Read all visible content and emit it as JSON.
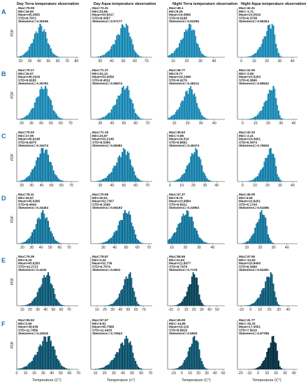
{
  "figure": {
    "column_titles": [
      "Day Terra temperature observation",
      "Day Aqua temperature observation",
      "Night Terra temperature observation",
      "Night Aqua temperature observation"
    ],
    "row_letters": [
      "A",
      "B",
      "C",
      "D",
      "E",
      "F"
    ],
    "ylabel": "PDF",
    "xlabels": [
      "Temperature (C°)",
      "Temperature (c°)",
      "Temperature (C°)",
      "Temperature (C°)"
    ]
  },
  "chart_data": [
    {
      "type": "bar",
      "row": "A",
      "col": 1,
      "title": "Day Terra temperature observation",
      "stats": [
        "Max=79.09",
        "Min=16.83",
        "Mean=45.3655",
        "STD=8.7972",
        "Skewness=-0.36196"
      ],
      "x_ticks": [
        "20",
        "30",
        "40",
        "50",
        "60",
        "70",
        "80"
      ],
      "xlim": [
        16,
        82
      ],
      "mean": 45.37,
      "std": 8.8,
      "skew": -0.36,
      "colors": [
        "#2e9ec6",
        "#1b7ea8"
      ]
    },
    {
      "type": "bar",
      "row": "A",
      "col": 2,
      "title": "Day Aqua temperature observation",
      "stats": [
        "Max=72.31",
        "Min=23.65",
        "Mean=53.5017",
        "STD=8.4357",
        "Skewness=-0.57177"
      ],
      "x_ticks": [
        "30",
        "40",
        "50",
        "60",
        "70"
      ],
      "xlim": [
        22,
        75
      ],
      "mean": 53.5,
      "std": 8.44,
      "skew": -0.57,
      "colors": [
        "#2e9ec6",
        "#1b7ea8"
      ]
    },
    {
      "type": "bar",
      "row": "A",
      "col": 3,
      "title": "Night Terra temperature observation",
      "stats": [
        "Max=49.1",
        "Min=8.25",
        "Mean=24.5866",
        "STD=6.9168",
        "Skewness=-0.52255"
      ],
      "x_ticks": [
        "10",
        "20",
        "30",
        "40"
      ],
      "xlim": [
        6,
        48
      ],
      "mean": 24.59,
      "std": 6.92,
      "skew": -0.52,
      "colors": [
        "#2e9ec6",
        "#1b7ea8"
      ]
    },
    {
      "type": "bar",
      "row": "A",
      "col": 4,
      "title": "Night Aqua temperature observation",
      "stats": [
        "Max=42.31",
        "Min=-1.71",
        "Mean=23.5519",
        "STD=6.3738",
        "Skewness=-0.85304"
      ],
      "x_ticks": [
        "0",
        "10",
        "20",
        "30",
        "40"
      ],
      "xlim": [
        -3,
        44
      ],
      "mean": 23.55,
      "std": 6.37,
      "skew": -0.85,
      "colors": [
        "#2e9ec6",
        "#1b7ea8"
      ]
    },
    {
      "type": "bar",
      "row": "B",
      "col": 1,
      "stats": [
        "Max=76.17",
        "Min=16.57",
        "Mean=46.2918",
        "STD=8.8185",
        "Skewness=-0.35782"
      ],
      "x_ticks": [
        "20",
        "30",
        "40",
        "50",
        "60",
        "70"
      ],
      "xlim": [
        15,
        78
      ],
      "mean": 46.29,
      "std": 8.82,
      "skew": -0.36,
      "colors": [
        "#2e9ec6",
        "#1b7ea8"
      ]
    },
    {
      "type": "bar",
      "row": "B",
      "col": 2,
      "stats": [
        "Max=71.37",
        "Min=24.13",
        "Mean=53.4559",
        "STD=8.4531",
        "Skewness=-0.56674"
      ],
      "x_ticks": [
        "30",
        "40",
        "50",
        "60",
        "70"
      ],
      "xlim": [
        22,
        74
      ],
      "mean": 53.46,
      "std": 8.45,
      "skew": -0.57,
      "colors": [
        "#2e9ec6",
        "#1b7ea8"
      ]
    },
    {
      "type": "bar",
      "row": "B",
      "col": 3,
      "stats": [
        "Max=46.77",
        "Min=6.77",
        "Mean=24.2449",
        "STD=6.9276",
        "Skewness=-0.48114"
      ],
      "x_ticks": [
        "10",
        "20",
        "30",
        "40"
      ],
      "xlim": [
        5,
        48
      ],
      "mean": 24.24,
      "std": 6.93,
      "skew": -0.48,
      "colors": [
        "#2e9ec6",
        "#1b7ea8"
      ]
    },
    {
      "type": "bar",
      "row": "B",
      "col": 4,
      "stats": [
        "Max=41.05",
        "Min=-2.69",
        "Mean=23.5293",
        "STD=6.3896",
        "Skewness=-0.89543"
      ],
      "x_ticks": [
        "0",
        "10",
        "20",
        "30",
        "40"
      ],
      "xlim": [
        -4,
        43
      ],
      "mean": 23.53,
      "std": 6.39,
      "skew": -0.9,
      "colors": [
        "#2e9ec6",
        "#1b7ea8"
      ]
    },
    {
      "type": "bar",
      "row": "C",
      "col": 1,
      "stats": [
        "Max=75.03",
        "Min=17.05",
        "Mean=45.9148",
        "STD=8.6975",
        "Skewness=-0.34274"
      ],
      "x_ticks": [
        "20",
        "30",
        "40",
        "50",
        "60",
        "70"
      ],
      "xlim": [
        15,
        77
      ],
      "mean": 45.91,
      "std": 8.7,
      "skew": -0.34,
      "colors": [
        "#2a95bd",
        "#17759e"
      ]
    },
    {
      "type": "bar",
      "row": "C",
      "col": 2,
      "stats": [
        "Max=71.15",
        "Min=23.67",
        "Mean=53.2149",
        "STD=8.5396",
        "Skewness=-0.56082"
      ],
      "x_ticks": [
        "30",
        "40",
        "50",
        "60",
        "70"
      ],
      "xlim": [
        22,
        74
      ],
      "mean": 53.21,
      "std": 8.54,
      "skew": -0.56,
      "colors": [
        "#2a95bd",
        "#17759e"
      ]
    },
    {
      "type": "bar",
      "row": "C",
      "col": 3,
      "stats": [
        "Max=45.63",
        "Min=-0.85",
        "Mean=24.314",
        "STD=6.8562",
        "Skewness=-0.45474"
      ],
      "x_ticks": [
        "0",
        "10",
        "20",
        "30",
        "40"
      ],
      "xlim": [
        -2,
        47
      ],
      "mean": 24.31,
      "std": 6.86,
      "skew": -0.45,
      "colors": [
        "#2a95bd",
        "#17759e"
      ]
    },
    {
      "type": "bar",
      "row": "C",
      "col": 4,
      "stats": [
        "Max=42.33",
        "Min=-2.21",
        "Mean=23.4601",
        "STD=6.3474",
        "Skewness=-0.76526"
      ],
      "x_ticks": [
        "0",
        "10",
        "20",
        "30",
        "40"
      ],
      "xlim": [
        -4,
        44
      ],
      "mean": 23.46,
      "std": 6.35,
      "skew": -0.77,
      "colors": [
        "#2a95bd",
        "#17759e"
      ]
    },
    {
      "type": "bar",
      "row": "D",
      "col": 1,
      "stats": [
        "Max=78.11",
        "Min=15.57",
        "Mean=45.5266",
        "STD=8.4644",
        "Skewness=-0.34404"
      ],
      "x_ticks": [
        "20",
        "30",
        "40",
        "50",
        "60",
        "70"
      ],
      "xlim": [
        14,
        80
      ],
      "mean": 45.53,
      "std": 8.46,
      "skew": -0.34,
      "colors": [
        "#2488ae",
        "#136a8f"
      ]
    },
    {
      "type": "bar",
      "row": "D",
      "col": 2,
      "stats": [
        "Max=70.69",
        "Min=20.01",
        "Mean=52.7307",
        "STD=8.1599",
        "Skewness=-0.56192"
      ],
      "x_ticks": [
        "30",
        "40",
        "50",
        "60",
        "70"
      ],
      "xlim": [
        19,
        73
      ],
      "mean": 52.73,
      "std": 8.16,
      "skew": -0.56,
      "colors": [
        "#2488ae",
        "#136a8f"
      ]
    },
    {
      "type": "bar",
      "row": "D",
      "col": 3,
      "stats": [
        "Max=47.37",
        "Min=8.75",
        "Mean=23.9884",
        "STD=6.8321",
        "Skewness=-0.33953"
      ],
      "x_ticks": [
        "10",
        "20",
        "30",
        "40"
      ],
      "xlim": [
        7,
        49
      ],
      "mean": 23.99,
      "std": 6.83,
      "skew": -0.34,
      "colors": [
        "#2488ae",
        "#136a8f"
      ]
    },
    {
      "type": "bar",
      "row": "D",
      "col": 4,
      "stats": [
        "Max=46.09",
        "Min=4.59",
        "Mean=22.8201",
        "STD=5.1744",
        "Skewness=-0.61086"
      ],
      "x_ticks": [
        "10",
        "20",
        "30",
        "40"
      ],
      "xlim": [
        3,
        48
      ],
      "mean": 22.82,
      "std": 5.17,
      "skew": -0.61,
      "colors": [
        "#2488ae",
        "#136a8f"
      ]
    },
    {
      "type": "bar",
      "row": "E",
      "col": 1,
      "stats": [
        "Max=79.39",
        "Min=5.19",
        "Mean=45.6283",
        "STD=10.2713",
        "Skewness=-0.4232"
      ],
      "x_ticks": [
        "10",
        "20",
        "30",
        "40",
        "50",
        "60",
        "70"
      ],
      "xlim": [
        3,
        82
      ],
      "mean": 45.63,
      "std": 10.27,
      "skew": -0.42,
      "colors": [
        "#1d6f8c",
        "#0f4f68"
      ]
    },
    {
      "type": "bar",
      "row": "E",
      "col": 2,
      "stats": [
        "Max=78.87",
        "Min=4.33",
        "Mean=52.739",
        "STD=9.7074",
        "Skewness=-0.6921"
      ],
      "x_ticks": [
        "10",
        "20",
        "30",
        "40",
        "50",
        "60",
        "70"
      ],
      "xlim": [
        2,
        81
      ],
      "mean": 52.74,
      "std": 9.71,
      "skew": -0.69,
      "colors": [
        "#1d6f8c",
        "#0f4f68"
      ]
    },
    {
      "type": "bar",
      "row": "E",
      "col": 3,
      "stats": [
        "Max=58.65",
        "Min=12.63",
        "Mean=21.8977",
        "STD=8.7478",
        "Skewness=-0.7179"
      ],
      "x_ticks": [
        "-10",
        "0",
        "10",
        "20",
        "30",
        "40",
        "50"
      ],
      "xlim": [
        -14,
        60
      ],
      "mean": 21.9,
      "std": 8.75,
      "skew": -0.72,
      "colors": [
        "#16566d",
        "#0b3a4c"
      ]
    },
    {
      "type": "bar",
      "row": "E",
      "col": 4,
      "stats": [
        "Max=47.55",
        "Min=-12.53",
        "Mean=20.8406",
        "STD=8.3999",
        "Skewness=-0.92281"
      ],
      "x_ticks": [
        "-10",
        "0",
        "10",
        "20",
        "30",
        "40"
      ],
      "xlim": [
        -14,
        50
      ],
      "mean": 20.84,
      "std": 8.4,
      "skew": -0.92,
      "colors": [
        "#1d6f8c",
        "#0f4f68"
      ]
    },
    {
      "type": "bar",
      "row": "F",
      "col": 1,
      "stats": [
        "Max=65.53",
        "Min=2.55",
        "Mean=38.839",
        "STD=11.7956",
        "Skewness=-0.42515"
      ],
      "x_ticks": [
        "0",
        "10",
        "20",
        "30",
        "40",
        "50",
        "60",
        "70"
      ],
      "xlim": [
        0,
        70
      ],
      "mean": 38.84,
      "std": 11.8,
      "skew": -0.43,
      "colors": [
        "#1a6583",
        "#0d4a60"
      ]
    },
    {
      "type": "bar",
      "row": "F",
      "col": 2,
      "stats": [
        "Max=67.57",
        "Min=6.81",
        "Mean=45.7588",
        "STD=11.4433",
        "Skewness=-0.73643"
      ],
      "x_ticks": [
        "10",
        "20",
        "30",
        "40",
        "50",
        "60",
        "70"
      ],
      "xlim": [
        5,
        72
      ],
      "mean": 45.76,
      "std": 11.44,
      "skew": -0.74,
      "colors": [
        "#1a6583",
        "#0d4a60"
      ]
    },
    {
      "type": "bar",
      "row": "F",
      "col": 3,
      "stats": [
        "Max=49.09",
        "Min=-14.95",
        "Mean=18.115",
        "STD=8.6819",
        "Skewness=-0.5903"
      ],
      "x_ticks": [
        "-10",
        "0",
        "10",
        "20",
        "30",
        "40",
        "50"
      ],
      "xlim": [
        -17,
        52
      ],
      "mean": 18.12,
      "std": 8.68,
      "skew": -0.59,
      "colors": [
        "#1a6583",
        "#0d4a60"
      ]
    },
    {
      "type": "bar",
      "row": "F",
      "col": 4,
      "stats": [
        "Max=41.77",
        "Min=-20.33",
        "Mean=17.4551",
        "STD=7.5916",
        "Skewness=-0.87788"
      ],
      "x_ticks": [
        "-20",
        "-10",
        "0",
        "10",
        "20",
        "30",
        "40"
      ],
      "xlim": [
        -23,
        44
      ],
      "mean": 17.46,
      "std": 7.59,
      "skew": -0.88,
      "colors": [
        "#0f3f52",
        "#082c3b"
      ]
    }
  ]
}
